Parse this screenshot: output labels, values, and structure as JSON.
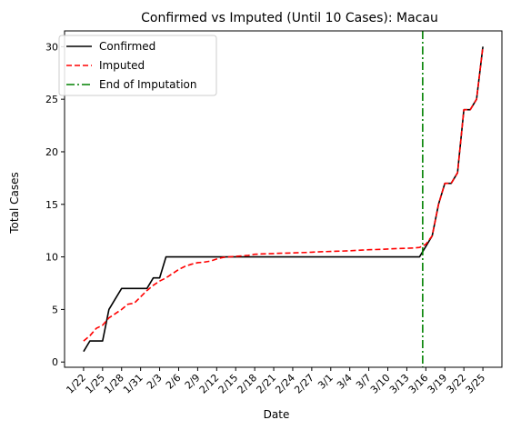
{
  "chart_data": {
    "type": "line",
    "title": "Confirmed vs Imputed (Until 10 Cases): Macau",
    "xlabel": "Date",
    "ylabel": "Total Cases",
    "ylim": [
      -0.5,
      31.5
    ],
    "yticks": [
      0,
      5,
      10,
      15,
      20,
      25,
      30
    ],
    "start_date": "1/22",
    "xtick_labels": [
      "1/22",
      "1/25",
      "1/28",
      "1/31",
      "2/3",
      "2/6",
      "2/9",
      "2/12",
      "2/15",
      "2/18",
      "2/21",
      "2/24",
      "2/27",
      "3/1",
      "3/4",
      "3/7",
      "3/10",
      "3/13",
      "3/16",
      "3/19",
      "3/22",
      "3/25"
    ],
    "xtick_days": [
      0,
      3,
      6,
      9,
      12,
      15,
      18,
      21,
      24,
      27,
      30,
      33,
      36,
      39,
      42,
      45,
      48,
      51,
      54,
      57,
      60,
      63
    ],
    "grid": false,
    "legend_position": "top-left",
    "series": [
      {
        "name": "Confirmed",
        "color": "#000000",
        "style": "solid",
        "x": [
          0,
          1,
          2,
          3,
          4,
          5,
          6,
          7,
          8,
          9,
          10,
          11,
          12,
          13,
          14,
          15,
          16,
          17,
          18,
          19,
          20,
          21,
          22,
          23,
          24,
          25,
          26,
          27,
          28,
          29,
          30,
          31,
          32,
          33,
          34,
          35,
          36,
          37,
          38,
          39,
          40,
          41,
          42,
          43,
          44,
          45,
          46,
          47,
          48,
          49,
          50,
          51,
          52,
          53,
          54,
          55,
          56,
          57,
          58,
          59,
          60,
          61,
          62,
          63
        ],
        "values": [
          1,
          2,
          2,
          2,
          5,
          6,
          7,
          7,
          7,
          7,
          7,
          8,
          8,
          10,
          10,
          10,
          10,
          10,
          10,
          10,
          10,
          10,
          10,
          10,
          10,
          10,
          10,
          10,
          10,
          10,
          10,
          10,
          10,
          10,
          10,
          10,
          10,
          10,
          10,
          10,
          10,
          10,
          10,
          10,
          10,
          10,
          10,
          10,
          10,
          10,
          10,
          10,
          10,
          10,
          11,
          12,
          15,
          17,
          17,
          18,
          24,
          24,
          25,
          30
        ]
      },
      {
        "name": "Imputed",
        "color": "#ff0000",
        "style": "dashed",
        "x": [
          0,
          1,
          2,
          3,
          4,
          5,
          6,
          7,
          8,
          9,
          10,
          11,
          12,
          13,
          14,
          15,
          16,
          17,
          18,
          19,
          20,
          21,
          22,
          23,
          24,
          25,
          26,
          27,
          28,
          29,
          30,
          31,
          32,
          33,
          34,
          35,
          36,
          37,
          38,
          39,
          40,
          41,
          42,
          43,
          44,
          45,
          46,
          47,
          48,
          49,
          50,
          51,
          52,
          53,
          54,
          55,
          56,
          57,
          58,
          59,
          60,
          61,
          62,
          63
        ],
        "values": [
          2,
          2.5,
          3.2,
          3.5,
          4.2,
          4.6,
          5.0,
          5.5,
          5.6,
          6.2,
          6.8,
          7.3,
          7.7,
          8.0,
          8.4,
          8.8,
          9.1,
          9.3,
          9.45,
          9.5,
          9.6,
          9.8,
          9.95,
          10.0,
          10.05,
          10.1,
          10.15,
          10.25,
          10.28,
          10.3,
          10.32,
          10.35,
          10.36,
          10.38,
          10.4,
          10.42,
          10.45,
          10.48,
          10.5,
          10.52,
          10.54,
          10.56,
          10.58,
          10.62,
          10.65,
          10.68,
          10.7,
          10.72,
          10.75,
          10.78,
          10.8,
          10.82,
          10.85,
          10.9,
          11.2,
          12,
          15,
          17,
          17,
          18,
          24,
          24,
          25,
          30
        ]
      }
    ],
    "vertical_line": {
      "name": "End of Imputation",
      "color": "#008000",
      "style": "dashdot",
      "x": 53.5
    }
  }
}
